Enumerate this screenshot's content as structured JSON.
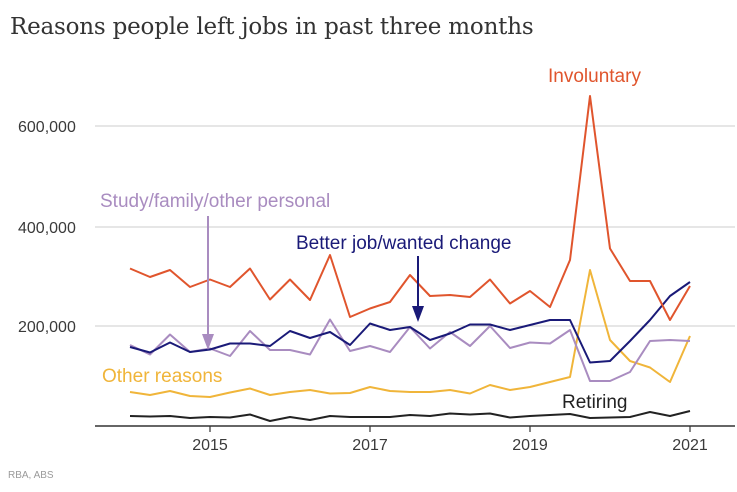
{
  "chart_data": {
    "type": "line",
    "title": "Reasons people left jobs in past three months",
    "source": "RBA, ABS",
    "xlabel": "",
    "ylabel": "",
    "x_ticks": [
      "2015",
      "2017",
      "2019",
      "2021"
    ],
    "x_tick_values": [
      2015,
      2017,
      2019,
      2021
    ],
    "xlim": [
      2013.5,
      2021.4
    ],
    "y_ticks": [
      "200,000",
      "400,000",
      "600,000"
    ],
    "y_tick_values": [
      200000,
      400000,
      600000
    ],
    "ylim": [
      0,
      700000
    ],
    "grid": true,
    "x": [
      2014.0,
      2014.25,
      2014.5,
      2014.75,
      2015.0,
      2015.25,
      2015.5,
      2015.75,
      2016.0,
      2016.25,
      2016.5,
      2016.75,
      2017.0,
      2017.25,
      2017.5,
      2017.75,
      2018.0,
      2018.25,
      2018.5,
      2018.75,
      2019.0,
      2019.25,
      2019.5,
      2019.75,
      2020.0,
      2020.25,
      2020.5,
      2020.75,
      2021.0
    ],
    "series": [
      {
        "name": "Involuntary",
        "color": "#e0552d",
        "values": [
          315000,
          298000,
          312000,
          278000,
          293000,
          278000,
          315000,
          253000,
          293000,
          252000,
          342000,
          218000,
          235000,
          248000,
          302000,
          260000,
          262000,
          258000,
          293000,
          245000,
          270000,
          238000,
          332000,
          660000,
          355000,
          290000,
          290000,
          212000,
          280000
        ]
      },
      {
        "name": "Better job/wanted change",
        "color": "#1a1a78",
        "values": [
          158000,
          147000,
          167000,
          148000,
          153000,
          165000,
          165000,
          160000,
          190000,
          176000,
          188000,
          162000,
          205000,
          192000,
          198000,
          172000,
          185000,
          203000,
          203000,
          192000,
          202000,
          212000,
          212000,
          127000,
          130000,
          170000,
          212000,
          260000,
          288000
        ]
      },
      {
        "name": "Study/family/other personal",
        "color": "#a98cc0",
        "values": [
          162000,
          143000,
          183000,
          148000,
          155000,
          140000,
          190000,
          152000,
          152000,
          143000,
          213000,
          150000,
          160000,
          148000,
          198000,
          155000,
          188000,
          160000,
          200000,
          156000,
          167000,
          165000,
          192000,
          90000,
          90000,
          108000,
          170000,
          172000,
          170000
        ]
      },
      {
        "name": "Other reasons",
        "color": "#f0b53a",
        "values": [
          68000,
          62000,
          70000,
          60000,
          58000,
          67000,
          75000,
          62000,
          68000,
          72000,
          65000,
          66000,
          78000,
          70000,
          68000,
          68000,
          72000,
          65000,
          82000,
          72000,
          78000,
          88000,
          98000,
          312000,
          172000,
          130000,
          117000,
          88000,
          180000
        ]
      },
      {
        "name": "Retiring",
        "color": "#222222",
        "values": [
          20000,
          19000,
          20000,
          16000,
          18000,
          17000,
          23000,
          10000,
          18000,
          12000,
          20000,
          18000,
          18000,
          18000,
          22000,
          20000,
          25000,
          23000,
          25000,
          17000,
          20000,
          22000,
          24000,
          16000,
          17000,
          18000,
          28000,
          20000,
          30000
        ]
      }
    ],
    "annotations": [
      {
        "text": "Involuntary",
        "series": "Involuntary",
        "arrow": false
      },
      {
        "text": "Study/family/other personal",
        "series": "Study/family/other personal",
        "arrow": true
      },
      {
        "text": "Better job/wanted change",
        "series": "Better job/wanted change",
        "arrow": true
      },
      {
        "text": "Other reasons",
        "series": "Other reasons",
        "arrow": false
      },
      {
        "text": "Retiring",
        "series": "Retiring",
        "arrow": false
      }
    ]
  }
}
